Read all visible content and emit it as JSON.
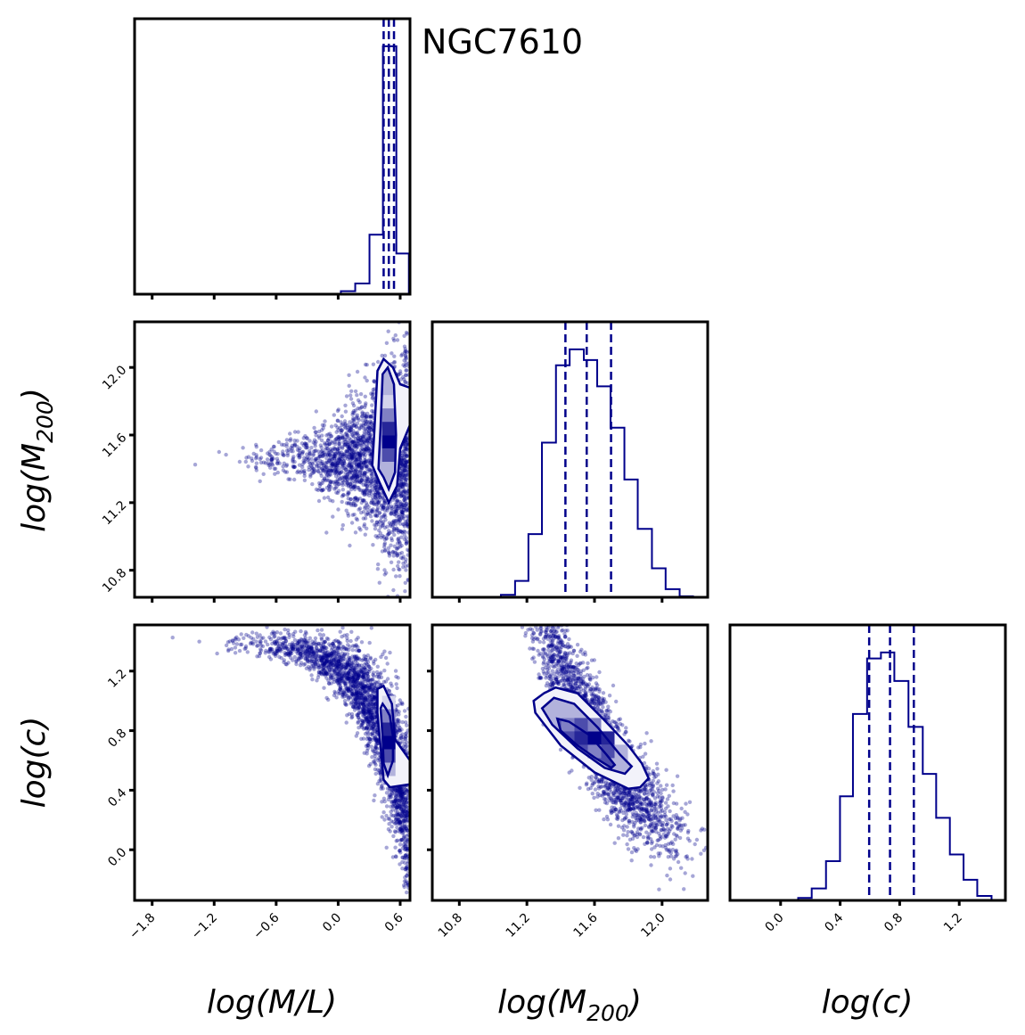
{
  "chart_data": {
    "type": "corner",
    "title": "NGC7610",
    "color": "#00008b",
    "parameters": [
      {
        "key": "ML",
        "label_main": "log(M/L)",
        "label_prefix": "log(M",
        "label_sub": "",
        "label_suffix": "/L)",
        "range": [
          -1.97,
          0.695
        ],
        "ticks": [
          -1.8,
          -1.2,
          -0.6,
          0.0,
          0.6
        ],
        "tick_labels": [
          "−1.8",
          "−1.2",
          "−0.6",
          "0.0",
          "0.6"
        ]
      },
      {
        "key": "M200",
        "label_main": "log(M200)",
        "label_prefix": "log(M",
        "label_sub": "200",
        "label_suffix": ")",
        "range": [
          10.64,
          12.27
        ],
        "ticks": [
          10.8,
          11.2,
          11.6,
          12.0
        ],
        "tick_labels": [
          "10.8",
          "11.2",
          "11.6",
          "12.0"
        ]
      },
      {
        "key": "c",
        "label_main": "log(c)",
        "label_prefix": "log(c",
        "label_sub": "",
        "label_suffix": ")",
        "range": [
          -0.34,
          1.51
        ],
        "ticks": [
          0.0,
          0.4,
          0.8,
          1.2
        ],
        "tick_labels": [
          "0.0",
          "0.4",
          "0.8",
          "1.2"
        ]
      }
    ],
    "histograms": [
      {
        "param": "ML",
        "bin_edges": [
          0.026,
          0.165,
          0.303,
          0.433,
          0.563,
          0.684
        ],
        "counts_normalized": [
          0.012,
          0.043,
          0.24,
          1.0,
          0.164
        ],
        "quantiles": [
          0.44,
          0.49,
          0.54
        ]
      },
      {
        "param": "M200",
        "bin_edges": [
          11.046,
          11.13,
          11.209,
          11.289,
          11.372,
          11.453,
          11.537,
          11.616,
          11.695,
          11.777,
          11.856,
          11.94,
          12.021,
          12.104,
          12.183
        ],
        "counts_normalized": [
          0.01,
          0.066,
          0.255,
          0.624,
          0.936,
          1.0,
          0.957,
          0.851,
          0.684,
          0.475,
          0.276,
          0.117,
          0.033,
          0.004
        ],
        "quantiles": [
          11.428,
          11.554,
          11.698
        ]
      },
      {
        "param": "c",
        "bin_edges": [
          0.118,
          0.209,
          0.305,
          0.399,
          0.486,
          0.581,
          0.674,
          0.764,
          0.859,
          0.955,
          1.045,
          1.137,
          1.229,
          1.321,
          1.417
        ],
        "counts_normalized": [
          0.01,
          0.048,
          0.158,
          0.42,
          0.752,
          0.976,
          1.0,
          0.885,
          0.7,
          0.51,
          0.333,
          0.185,
          0.083,
          0.018
        ],
        "quantiles": [
          0.595,
          0.735,
          0.895
        ]
      }
    ],
    "joint_panels": [
      {
        "x": "ML",
        "y": "M200",
        "peak": [
          0.49,
          11.56
        ],
        "contours": [
          [
            [
              0.38,
              11.98
            ],
            [
              0.44,
              12.05
            ],
            [
              0.53,
              12.0
            ],
            [
              0.6,
              11.9
            ],
            [
              0.695,
              11.88
            ],
            [
              0.695,
              11.66
            ],
            [
              0.6,
              11.52
            ],
            [
              0.57,
              11.3
            ],
            [
              0.49,
              11.2
            ],
            [
              0.4,
              11.32
            ],
            [
              0.33,
              11.42
            ],
            [
              0.35,
              11.62
            ]
          ],
          [
            [
              0.43,
              11.96
            ],
            [
              0.48,
              12.0
            ],
            [
              0.54,
              11.9
            ],
            [
              0.56,
              11.6
            ],
            [
              0.55,
              11.38
            ],
            [
              0.49,
              11.28
            ],
            [
              0.44,
              11.35
            ],
            [
              0.39,
              11.4
            ],
            [
              0.41,
              11.65
            ]
          ]
        ]
      },
      {
        "x": "ML",
        "y": "c",
        "peak": [
          0.49,
          0.72
        ],
        "contours": [
          [
            [
              0.38,
              1.08
            ],
            [
              0.44,
              1.1
            ],
            [
              0.52,
              0.98
            ],
            [
              0.55,
              0.74
            ],
            [
              0.695,
              0.6
            ],
            [
              0.695,
              0.44
            ],
            [
              0.5,
              0.42
            ],
            [
              0.44,
              0.47
            ],
            [
              0.42,
              0.62
            ],
            [
              0.38,
              0.92
            ]
          ],
          [
            [
              0.43,
              0.98
            ],
            [
              0.46,
              0.95
            ],
            [
              0.5,
              0.9
            ],
            [
              0.53,
              0.76
            ],
            [
              0.53,
              0.6
            ],
            [
              0.48,
              0.5
            ],
            [
              0.44,
              0.58
            ],
            [
              0.43,
              0.75
            ],
            [
              0.41,
              0.95
            ]
          ]
        ]
      },
      {
        "x": "M200",
        "y": "c",
        "peak": [
          11.6,
          0.75
        ],
        "contours": [
          [
            [
              11.3,
              1.05
            ],
            [
              11.37,
              1.09
            ],
            [
              11.5,
              1.05
            ],
            [
              11.65,
              0.88
            ],
            [
              11.8,
              0.7
            ],
            [
              11.88,
              0.58
            ],
            [
              11.92,
              0.48
            ],
            [
              11.87,
              0.42
            ],
            [
              11.8,
              0.41
            ],
            [
              11.6,
              0.52
            ],
            [
              11.4,
              0.7
            ],
            [
              11.25,
              0.92
            ],
            [
              11.24,
              1.0
            ]
          ],
          [
            [
              11.32,
              0.98
            ],
            [
              11.36,
              1.02
            ],
            [
              11.48,
              0.98
            ],
            [
              11.62,
              0.82
            ],
            [
              11.75,
              0.64
            ],
            [
              11.82,
              0.56
            ],
            [
              11.78,
              0.51
            ],
            [
              11.66,
              0.55
            ],
            [
              11.5,
              0.68
            ],
            [
              11.35,
              0.84
            ],
            [
              11.29,
              0.95
            ]
          ],
          [
            [
              11.38,
              0.88
            ],
            [
              11.45,
              0.86
            ],
            [
              11.57,
              0.77
            ],
            [
              11.67,
              0.64
            ],
            [
              11.72,
              0.57
            ],
            [
              11.7,
              0.55
            ],
            [
              11.6,
              0.62
            ],
            [
              11.5,
              0.7
            ],
            [
              11.4,
              0.8
            ]
          ]
        ]
      }
    ]
  }
}
